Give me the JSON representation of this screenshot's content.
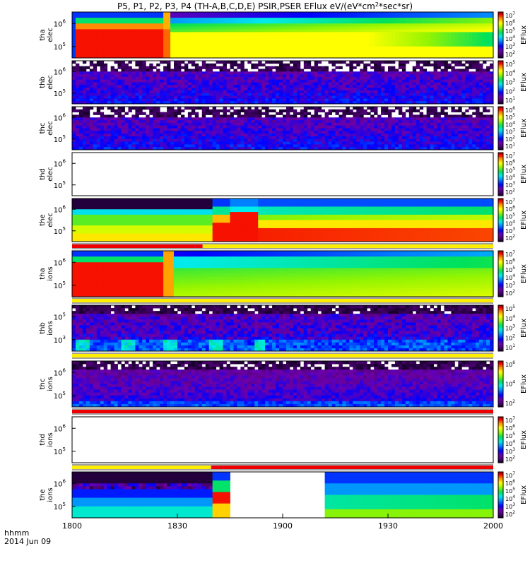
{
  "title": "P5, P1, P2, P3, P4 (TH-A,B,C,D,E) PSIR,PSER EFlux eV/(eV*cm2*sec*sr)",
  "time_axis": {
    "ticks": [
      "1800",
      "1830",
      "1900",
      "1930",
      "2000"
    ],
    "label_line1": "hhmm",
    "label_line2": "2014 Jun 09"
  },
  "colorbar_label": "EFlux",
  "chart_data": [
    {
      "type": "heatmap",
      "ylabel": "tha elec",
      "ytick_exponents": [
        6,
        5
      ],
      "colorbar_exponents": [
        7,
        6,
        5,
        4,
        3,
        2
      ],
      "pattern": "tha_elec"
    },
    {
      "type": "heatmap",
      "ylabel": "thb elec",
      "ytick_exponents": [
        6,
        5
      ],
      "colorbar_exponents": [
        5,
        4,
        3,
        2,
        1
      ],
      "pattern": "noise_purple"
    },
    {
      "type": "heatmap",
      "ylabel": "thc elec",
      "ytick_exponents": [
        6,
        5
      ],
      "colorbar_exponents": [
        6,
        5,
        4,
        3,
        2,
        1
      ],
      "pattern": "noise_purple"
    },
    {
      "type": "heatmap",
      "ylabel": "thd elec",
      "ytick_exponents": [
        6,
        5
      ],
      "colorbar_exponents": [
        7,
        6,
        5,
        4,
        3,
        2
      ],
      "pattern": "empty"
    },
    {
      "type": "heatmap",
      "ylabel": "the elec",
      "ytick_exponents": [
        6,
        5
      ],
      "colorbar_exponents": [
        7,
        6,
        5,
        4,
        3,
        2
      ],
      "pattern": "the_elec"
    },
    {
      "type": "heatmap",
      "ylabel": "tha ions",
      "ytick_exponents": [
        6,
        5
      ],
      "colorbar_exponents": [
        7,
        6,
        5,
        4,
        3,
        2
      ],
      "pattern": "tha_ions"
    },
    {
      "type": "heatmap",
      "ylabel": "thb ions",
      "ytick_exponents": [
        5,
        3
      ],
      "colorbar_exponents": [
        5,
        4,
        3,
        2,
        1
      ],
      "pattern": "thb_ions"
    },
    {
      "type": "heatmap",
      "ylabel": "thc ions",
      "ytick_exponents": [
        6,
        5
      ],
      "colorbar_exponents": [
        6,
        4,
        2
      ],
      "pattern": "noise_purple_ions"
    },
    {
      "type": "heatmap",
      "ylabel": "thd ions",
      "ytick_exponents": [
        6,
        5
      ],
      "colorbar_exponents": [
        7,
        6,
        5,
        4,
        3,
        2
      ],
      "pattern": "empty"
    },
    {
      "type": "heatmap",
      "ylabel": "the ions",
      "ytick_exponents": [
        6,
        5
      ],
      "colorbar_exponents": [
        7,
        6,
        5,
        4,
        3,
        2
      ],
      "pattern": "the_ions"
    }
  ],
  "mode_bars": [
    {
      "after_panel": 4,
      "segments": [
        [
          "red",
          0,
          0.31
        ],
        [
          "yellow",
          0.31,
          1
        ]
      ]
    },
    {
      "after_panel": 5,
      "segments": [
        [
          "yellow",
          0,
          1
        ]
      ]
    },
    {
      "after_panel": 6,
      "segments": [
        [
          "yellow",
          0,
          1
        ]
      ]
    },
    {
      "after_panel": 7,
      "segments": [
        [
          "red",
          0,
          1
        ]
      ]
    },
    {
      "after_panel": 8,
      "segments": [
        [
          "yellow",
          0,
          0.33
        ],
        [
          "red",
          0.33,
          1
        ]
      ]
    }
  ]
}
